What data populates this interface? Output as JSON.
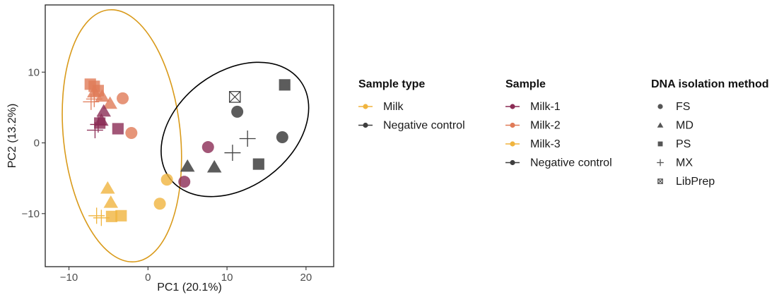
{
  "chart_data": {
    "type": "scatter",
    "title": "",
    "xlabel": "PC1 (20.1%)",
    "ylabel": "PC2 (13.2%)",
    "xlim": [
      -13,
      23.5
    ],
    "ylim": [
      -17.5,
      19.5
    ],
    "xticks": [
      -10,
      0,
      10,
      20
    ],
    "yticks": [
      -10,
      0,
      10
    ],
    "grid": false,
    "legend_position": "right",
    "colors": {
      "Milk-1": "#8b2c55",
      "Milk-2": "#e07b58",
      "Milk-3": "#f0b43e",
      "Negative control": "#3f3f3f",
      "Milk ellipse": "#d99a1a",
      "Negative control ellipse": "#000000"
    },
    "points": [
      {
        "x": -6.8,
        "y": 8.0,
        "sample": "Milk-2",
        "method": "PS"
      },
      {
        "x": -6.3,
        "y": 7.4,
        "sample": "Milk-2",
        "method": "PS"
      },
      {
        "x": -7.3,
        "y": 8.3,
        "sample": "Milk-2",
        "method": "PS"
      },
      {
        "x": -6.8,
        "y": 7.2,
        "sample": "Milk-2",
        "method": "MD"
      },
      {
        "x": -5.8,
        "y": 6.6,
        "sample": "Milk-2",
        "method": "MD"
      },
      {
        "x": -4.8,
        "y": 5.6,
        "sample": "Milk-2",
        "method": "MD"
      },
      {
        "x": -6.8,
        "y": 6.2,
        "sample": "Milk-2",
        "method": "MX"
      },
      {
        "x": -7.2,
        "y": 5.8,
        "sample": "Milk-2",
        "method": "MX"
      },
      {
        "x": -3.2,
        "y": 6.3,
        "sample": "Milk-2",
        "method": "FS"
      },
      {
        "x": -2.1,
        "y": 1.4,
        "sample": "Milk-2",
        "method": "FS"
      },
      {
        "x": -5.6,
        "y": 4.5,
        "sample": "Milk-1",
        "method": "MD"
      },
      {
        "x": -5.9,
        "y": 3.2,
        "sample": "Milk-1",
        "method": "MD"
      },
      {
        "x": -6.1,
        "y": 2.8,
        "sample": "Milk-1",
        "method": "PS"
      },
      {
        "x": -3.8,
        "y": 2.0,
        "sample": "Milk-1",
        "method": "PS"
      },
      {
        "x": -6.3,
        "y": 2.6,
        "sample": "Milk-1",
        "method": "MX"
      },
      {
        "x": -6.7,
        "y": 1.8,
        "sample": "Milk-1",
        "method": "MX"
      },
      {
        "x": 7.6,
        "y": -0.6,
        "sample": "Milk-1",
        "method": "FS"
      },
      {
        "x": 4.6,
        "y": -5.5,
        "sample": "Milk-1",
        "method": "FS"
      },
      {
        "x": -5.1,
        "y": -6.4,
        "sample": "Milk-3",
        "method": "MD"
      },
      {
        "x": -4.7,
        "y": -8.4,
        "sample": "Milk-3",
        "method": "MD"
      },
      {
        "x": -4.6,
        "y": -10.4,
        "sample": "Milk-3",
        "method": "PS"
      },
      {
        "x": -3.4,
        "y": -10.3,
        "sample": "Milk-3",
        "method": "PS"
      },
      {
        "x": -6.5,
        "y": -10.3,
        "sample": "Milk-3",
        "method": "MX"
      },
      {
        "x": -5.9,
        "y": -10.6,
        "sample": "Milk-3",
        "method": "MX"
      },
      {
        "x": 2.4,
        "y": -5.2,
        "sample": "Milk-3",
        "method": "FS"
      },
      {
        "x": 1.5,
        "y": -8.6,
        "sample": "Milk-3",
        "method": "FS"
      },
      {
        "x": 11.0,
        "y": 6.5,
        "sample": "Negative control",
        "method": "LibPrep"
      },
      {
        "x": 17.3,
        "y": 8.2,
        "sample": "Negative control",
        "method": "PS"
      },
      {
        "x": 11.3,
        "y": 4.4,
        "sample": "Negative control",
        "method": "FS"
      },
      {
        "x": 17.0,
        "y": 0.8,
        "sample": "Negative control",
        "method": "FS"
      },
      {
        "x": 12.6,
        "y": 0.6,
        "sample": "Negative control",
        "method": "MX"
      },
      {
        "x": 10.7,
        "y": -1.4,
        "sample": "Negative control",
        "method": "MX"
      },
      {
        "x": 5.0,
        "y": -3.3,
        "sample": "Negative control",
        "method": "MD"
      },
      {
        "x": 8.4,
        "y": -3.4,
        "sample": "Negative control",
        "method": "MD"
      },
      {
        "x": 14.0,
        "y": -3.0,
        "sample": "Negative control",
        "method": "PS"
      }
    ],
    "ellipses": [
      {
        "group": "Milk",
        "cx": -3.3,
        "cy": 1.0,
        "rx": 7.4,
        "ry": 17.9,
        "angle_deg": -6
      },
      {
        "group": "Negative control",
        "cx": 11.0,
        "cy": 1.9,
        "rx": 7.3,
        "ry": 11.5,
        "angle_deg": 53
      }
    ],
    "legends": [
      {
        "title": "Sample type",
        "entries": [
          "Milk",
          "Negative control"
        ]
      },
      {
        "title": "Sample",
        "entries": [
          "Milk-1",
          "Milk-2",
          "Milk-3",
          "Negative control"
        ]
      },
      {
        "title": "DNA isolation method",
        "entries": [
          "FS",
          "MD",
          "PS",
          "MX",
          "LibPrep"
        ]
      }
    ]
  }
}
